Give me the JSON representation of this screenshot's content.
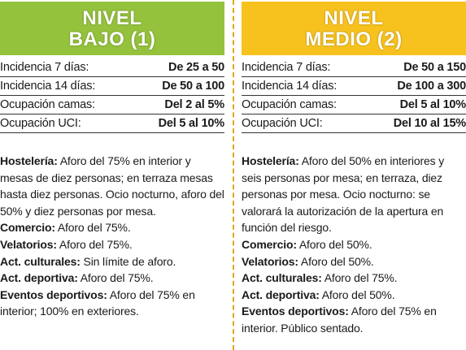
{
  "columns": [
    {
      "header": {
        "line1": "NIVEL",
        "line2": "BAJO (1)"
      },
      "indicators": [
        {
          "label": "Incidencia 7 días:",
          "value": "De 25 a 50"
        },
        {
          "label": "Incidencia 14 días:",
          "value": "De 50 a 100"
        },
        {
          "label": "Ocupación camas:",
          "value": "Del 2 al 5%"
        },
        {
          "label": "Ocupación UCI:",
          "value": "Del 5 al 10%"
        }
      ],
      "measures": [
        {
          "label": "Hostelería:",
          "text": "Aforo del 75% en interior y mesas de diez personas; en terraza mesas hasta diez personas. Ocio nocturno, aforo del 50% y diez personas por mesa."
        },
        {
          "label": "Comercio:",
          "text": "Aforo del 75%."
        },
        {
          "label": "Velatorios:",
          "text": "Aforo del 75%."
        },
        {
          "label": "Act. culturales:",
          "text": "Sin límite de aforo."
        },
        {
          "label": "Act. deportiva:",
          "text": "Aforo del 75%."
        },
        {
          "label": "Eventos deportivos:",
          "text": "Aforo del 75% en interior; 100% en exteriores."
        }
      ]
    },
    {
      "header": {
        "line1": "NIVEL",
        "line2": "MEDIO (2)"
      },
      "indicators": [
        {
          "label": "Incidencia 7 días:",
          "value": "De 50 a 150"
        },
        {
          "label": "Incidencia 14 días:",
          "value": "De 100 a 300"
        },
        {
          "label": "Ocupación camas:",
          "value": "Del 5 al 10%"
        },
        {
          "label": "Ocupación UCI:",
          "value": "Del 10 al 15%"
        }
      ],
      "measures": [
        {
          "label": "Hostelería:",
          "text": "Aforo del 50% en interiores y seis personas por mesa; en terraza, diez personas por mesa. Ocio nocturno: se valorará la autorización de la apertura en función del riesgo."
        },
        {
          "label": "Comercio:",
          "text": "Aforo del 50%."
        },
        {
          "label": "Velatorios:",
          "text": "Aforo del 50%."
        },
        {
          "label": "Act. culturales:",
          "text": "Aforo del 75%."
        },
        {
          "label": "Act. deportiva:",
          "text": "Aforo del 50%."
        },
        {
          "label": "Eventos deportivos:",
          "text": "Aforo del 75% en interior. Público sentado."
        }
      ]
    }
  ]
}
